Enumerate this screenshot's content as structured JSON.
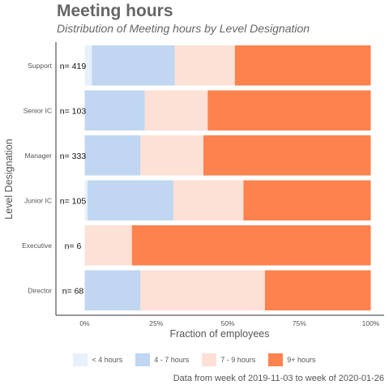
{
  "header": {
    "title": "Meeting hours",
    "subtitle": "Distribution of Meeting hours by Level Designation"
  },
  "caption": "Data from week of 2019-11-03 to week of 2020-01-26",
  "colors": {
    "lt4": "#e8f1fb",
    "4to7": "#c0d6f1",
    "7to9": "#fde0d6",
    "9plus": "#fe824d"
  },
  "chart_data": {
    "type": "bar",
    "orientation": "horizontal",
    "stacked": true,
    "xlabel": "Fraction of employees",
    "ylabel": "Level Designation",
    "xlim": [
      0,
      1
    ],
    "x_ticks": [
      "0%",
      "25%",
      "50%",
      "75%",
      "100%"
    ],
    "categories": [
      "Support",
      "Senior IC",
      "Manager",
      "Junior IC",
      "Executive",
      "Director"
    ],
    "counts": [
      "n= 419",
      "n= 103",
      "n= 333",
      "n= 105",
      "n= 6",
      "n= 68"
    ],
    "series": [
      {
        "name": "< 4 hours",
        "color_key": "lt4",
        "values": [
          0.025,
          0.0,
          0.0,
          0.01,
          0.0,
          0.0
        ]
      },
      {
        "name": "4 - 7 hours",
        "color_key": "4to7",
        "values": [
          0.29,
          0.21,
          0.195,
          0.3,
          0.0,
          0.195
        ]
      },
      {
        "name": "7 - 9 hours",
        "color_key": "7to9",
        "values": [
          0.21,
          0.22,
          0.22,
          0.245,
          0.165,
          0.435
        ]
      },
      {
        "name": "9+ hours",
        "color_key": "9plus",
        "values": [
          0.475,
          0.57,
          0.585,
          0.445,
          0.835,
          0.37
        ]
      }
    ],
    "legend_position": "bottom",
    "grid": false
  }
}
